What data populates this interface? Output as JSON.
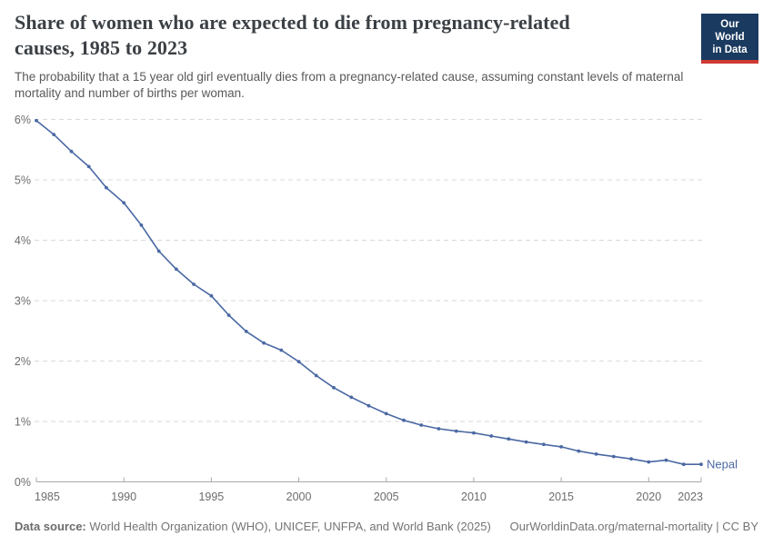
{
  "header": {
    "title": "Share of women who are expected to die from pregnancy-related causes, 1985 to 2023",
    "subtitle": "The probability that a 15 year old girl eventually dies from a pregnancy-related cause, assuming constant levels of maternal mortality and number of births per woman.",
    "logo": {
      "line1": "Our World",
      "line2": "in Data",
      "bg_color": "#1a3a5f",
      "accent_color": "#cf3934"
    }
  },
  "chart_data": {
    "type": "line",
    "title": "Share of women who are expected to die from pregnancy-related causes, 1985 to 2023",
    "xlabel": "",
    "ylabel": "",
    "xlim": [
      1985,
      2023
    ],
    "ylim": [
      0,
      6
    ],
    "x_ticks": [
      1985,
      1990,
      1995,
      2000,
      2005,
      2010,
      2015,
      2020,
      2023
    ],
    "y_ticks": [
      "0%",
      "1%",
      "2%",
      "3%",
      "4%",
      "5%",
      "6%"
    ],
    "grid": "horizontal-dashed",
    "legend_position": "end-of-line-label",
    "series": [
      {
        "name": "Nepal",
        "color": "#4a68a3",
        "x": [
          1985,
          1986,
          1987,
          1988,
          1989,
          1990,
          1991,
          1992,
          1993,
          1994,
          1995,
          1996,
          1997,
          1998,
          1999,
          2000,
          2001,
          2002,
          2003,
          2004,
          2005,
          2006,
          2007,
          2008,
          2009,
          2010,
          2011,
          2012,
          2013,
          2014,
          2015,
          2016,
          2017,
          2018,
          2019,
          2020,
          2021,
          2022,
          2023
        ],
        "values": [
          5.98,
          5.75,
          5.47,
          5.22,
          4.87,
          4.62,
          4.25,
          3.82,
          3.52,
          3.27,
          3.08,
          2.76,
          2.49,
          2.3,
          2.18,
          1.99,
          1.76,
          1.56,
          1.4,
          1.26,
          1.13,
          1.02,
          0.94,
          0.88,
          0.84,
          0.81,
          0.76,
          0.71,
          0.66,
          0.62,
          0.58,
          0.51,
          0.46,
          0.42,
          0.38,
          0.33,
          0.36,
          0.29,
          0.29
        ]
      }
    ]
  },
  "footer": {
    "datasource_label": "Data source:",
    "datasource_text": " World Health Organization (WHO), UNICEF, UNFPA, and World Bank (2025)",
    "link_text": "OurWorldinData.org/maternal-mortality | CC BY"
  },
  "colors": {
    "line": "#4a68a3",
    "grid": "#d9d9d9",
    "axis": "#a8a8a8",
    "tick_label": "#6c6c6c",
    "title": "#3b4045",
    "subtitle": "#595959",
    "footer": "#747474"
  }
}
